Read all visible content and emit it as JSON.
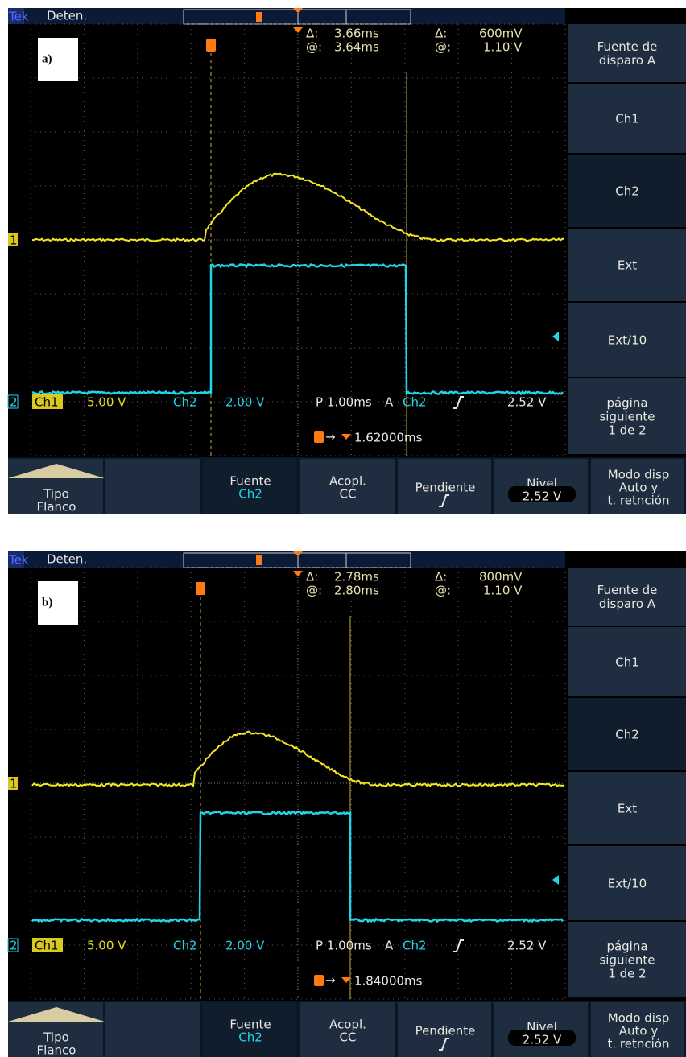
{
  "screens": [
    {
      "label": "a)",
      "brand": "Tek",
      "status": "Deten.",
      "readout": {
        "delta_t_label": "Δ:",
        "delta_t": "3.66ms",
        "delta_v_label": "Δ:",
        "delta_v": "600mV",
        "at_t_label": "@:",
        "at_t": "3.64ms",
        "at_v_label": "@:",
        "at_v": "1.10 V"
      },
      "channel_markers": [
        "1",
        "2"
      ],
      "status_line": {
        "ch1": "Ch1",
        "ch1_scale": "5.00 V",
        "ch2": "Ch2",
        "ch2_scale": "2.00 V",
        "timebase": "P 1.00ms",
        "trigger_mode": "A",
        "trigger_source": "Ch2",
        "trigger_level": "2.52 V"
      },
      "trigger_position": "1.62000ms",
      "side_menu": [
        [
          "Fuente de",
          "disparo A"
        ],
        [
          "Ch1"
        ],
        [
          "Ch2"
        ],
        [
          "Ext"
        ],
        [
          "Ext/10"
        ],
        [
          "página",
          "siguiente",
          "1 de 2"
        ]
      ],
      "bottom_menu": [
        [
          "Tipo",
          "Flanco"
        ],
        [],
        [
          "Fuente",
          "Ch2"
        ],
        [
          "Acopl.",
          "CC"
        ],
        [
          "Pendiente"
        ],
        [
          "Nivel",
          "2.52 V"
        ],
        [
          "Modo disp",
          "Auto y",
          "t. retnción"
        ]
      ]
    },
    {
      "label": "b)",
      "brand": "Tek",
      "status": "Deten.",
      "readout": {
        "delta_t_label": "Δ:",
        "delta_t": "2.78ms",
        "delta_v_label": "Δ:",
        "delta_v": "800mV",
        "at_t_label": "@:",
        "at_t": "2.80ms",
        "at_v_label": "@:",
        "at_v": "1.10 V"
      },
      "channel_markers": [
        "1",
        "2"
      ],
      "status_line": {
        "ch1": "Ch1",
        "ch1_scale": "5.00 V",
        "ch2": "Ch2",
        "ch2_scale": "2.00 V",
        "timebase": "P 1.00ms",
        "trigger_mode": "A",
        "trigger_source": "Ch2",
        "trigger_level": "2.52 V"
      },
      "trigger_position": "1.84000ms",
      "side_menu": [
        [
          "Fuente de",
          "disparo A"
        ],
        [
          "Ch1"
        ],
        [
          "Ch2"
        ],
        [
          "Ext"
        ],
        [
          "Ext/10"
        ],
        [
          "página",
          "siguiente",
          "1 de 2"
        ]
      ],
      "bottom_menu": [
        [
          "Tipo",
          "Flanco"
        ],
        [],
        [
          "Fuente",
          "Ch2"
        ],
        [
          "Acopl.",
          "CC"
        ],
        [
          "Pendiente"
        ],
        [
          "Nivel",
          "2.52 V"
        ],
        [
          "Modo disp",
          "Auto y",
          "t. retnción"
        ]
      ]
    }
  ]
}
